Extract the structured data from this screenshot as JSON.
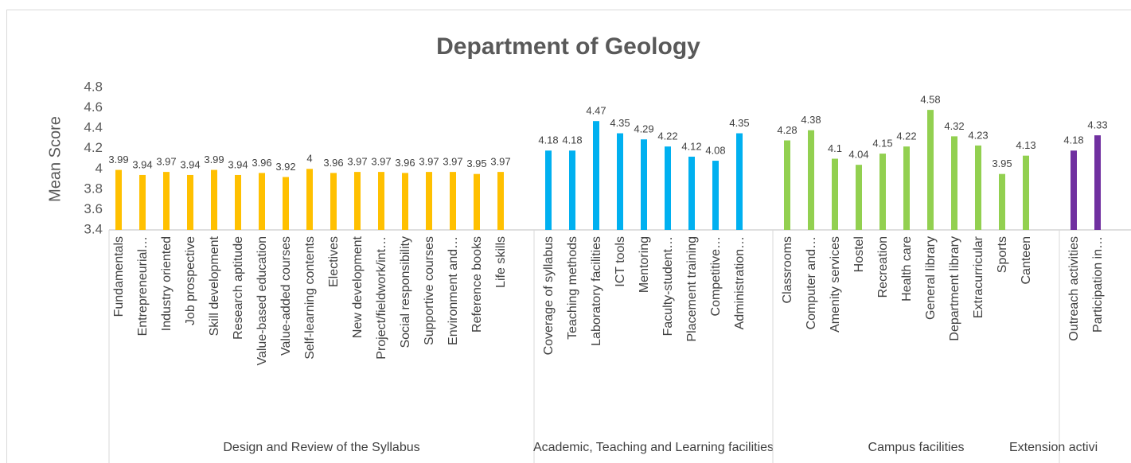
{
  "chart_data": {
    "type": "bar",
    "title": "Department of Geology",
    "y_label": "Mean Score",
    "ylim": [
      3.4,
      4.8
    ],
    "yticks": [
      3.4,
      3.6,
      3.8,
      4,
      4.2,
      4.4,
      4.6,
      4.8
    ],
    "grid": false,
    "groups": [
      {
        "name": "Design and Review of the Syllabus",
        "color": "#FFC000",
        "categories": [
          "Fundamentals",
          "Entrepreneurial…",
          "Industry oriented",
          "Job prospective",
          "Skill development",
          "Research aptitude",
          "Value-based education",
          "Value-added courses",
          "Self-learning contents",
          "Electives",
          "New development",
          "Project/fieldwork/int…",
          "Social responsibility",
          "Supportive courses",
          "Environment and…",
          "Reference books",
          "Life skills"
        ],
        "values": [
          3.99,
          3.94,
          3.97,
          3.94,
          3.99,
          3.94,
          3.96,
          3.92,
          4,
          3.96,
          3.97,
          3.97,
          3.96,
          3.97,
          3.97,
          3.95,
          3.97
        ]
      },
      {
        "name": "Academic, Teaching and Learning facilities",
        "color": "#00B0F0",
        "categories": [
          "Coverage of syllabus",
          "Teaching methods",
          "Laboratory facilities",
          "ICT tools",
          "Mentoring",
          "Faculty-student…",
          "Placement training",
          "Competitive…",
          "Administration…"
        ],
        "values": [
          4.18,
          4.18,
          4.47,
          4.35,
          4.29,
          4.22,
          4.12,
          4.08,
          4.35
        ]
      },
      {
        "name": "Campus facilities",
        "color": "#92D050",
        "categories": [
          "Classrooms",
          "Computer and…",
          "Amenity services",
          "Hostel",
          "Recreation",
          "Health care",
          "General library",
          "Department library",
          "Extracurricular",
          "Sports",
          "Canteen"
        ],
        "values": [
          4.28,
          4.38,
          4.1,
          4.04,
          4.15,
          4.22,
          4.58,
          4.32,
          4.23,
          3.95,
          4.13
        ]
      },
      {
        "name": "Extension activi",
        "color": "#7030A0",
        "categories": [
          "Outreach activities",
          "Participation in…"
        ],
        "values": [
          4.18,
          4.33
        ]
      }
    ]
  }
}
